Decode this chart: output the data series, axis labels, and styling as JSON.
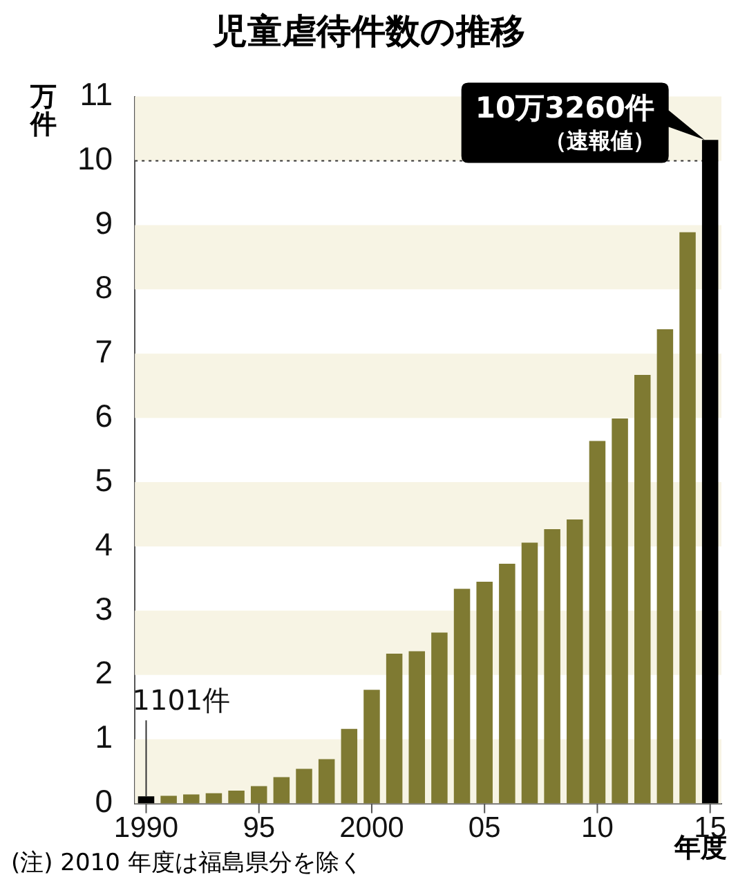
{
  "chart_data": {
    "type": "bar",
    "title": "児童虐待件数の推移",
    "ylabel": "万件",
    "xlabel": "年度",
    "categories": [
      "1990",
      null,
      null,
      null,
      null,
      "95",
      null,
      null,
      null,
      null,
      "2000",
      null,
      null,
      null,
      null,
      "05",
      null,
      null,
      null,
      null,
      "10",
      null,
      null,
      null,
      null,
      "15"
    ],
    "values": [
      0.1101,
      0.12,
      0.14,
      0.16,
      0.2,
      0.27,
      0.41,
      0.54,
      0.69,
      1.16,
      1.77,
      2.33,
      2.37,
      2.66,
      3.34,
      3.45,
      3.73,
      4.06,
      4.27,
      4.42,
      5.64,
      5.99,
      6.67,
      7.38,
      8.89,
      10.326
    ],
    "colors": [
      "#000000",
      "#7f7a32",
      "#7f7a32",
      "#7f7a32",
      "#7f7a32",
      "#7f7a32",
      "#7f7a32",
      "#7f7a32",
      "#7f7a32",
      "#7f7a32",
      "#7f7a32",
      "#7f7a32",
      "#7f7a32",
      "#7f7a32",
      "#7f7a32",
      "#7f7a32",
      "#7f7a32",
      "#7f7a32",
      "#7f7a32",
      "#7f7a32",
      "#7f7a32",
      "#7f7a32",
      "#7f7a32",
      "#7f7a32",
      "#7f7a32",
      "#000000"
    ],
    "ylim": [
      0,
      11
    ],
    "yticks": [
      0,
      1,
      2,
      3,
      4,
      5,
      6,
      7,
      8,
      9,
      10,
      11
    ],
    "legend": false,
    "bands": [
      {
        "axis": "y",
        "from": 0,
        "to": 1,
        "color": "#f7f4e4"
      },
      {
        "axis": "y",
        "from": 2,
        "to": 3,
        "color": "#f7f4e4"
      },
      {
        "axis": "y",
        "from": 4,
        "to": 5,
        "color": "#f7f4e4"
      },
      {
        "axis": "y",
        "from": 6,
        "to": 7,
        "color": "#f7f4e4"
      },
      {
        "axis": "y",
        "from": 8,
        "to": 9,
        "color": "#f7f4e4"
      },
      {
        "axis": "y",
        "from": 10,
        "to": 11,
        "color": "#f7f4e4"
      }
    ],
    "ref_lines": [
      {
        "axis": "y",
        "value": 10,
        "line_style": "dotted",
        "color": "#333333"
      }
    ],
    "annotations": [
      {
        "text": "1101件",
        "x": "1990",
        "y": 0.1101
      },
      {
        "text": "10万3260件",
        "x": "15",
        "y": 10.326
      },
      {
        "text": "（速報値）",
        "x": "15",
        "y": 10.326
      },
      "(注) 2010 年度は福島県分を除く"
    ]
  }
}
